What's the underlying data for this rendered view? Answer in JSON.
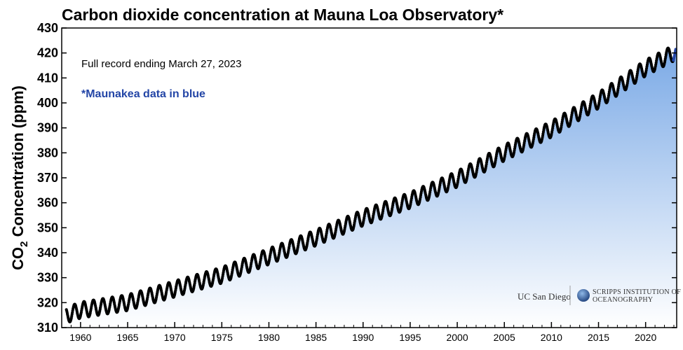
{
  "chart_data": {
    "type": "scatter",
    "title": "Carbon dioxide concentration at Mauna Loa Observatory*",
    "ylabel_main": "CO",
    "ylabel_sub": "2",
    "ylabel_rest": " Concentration (ppm)",
    "xlabel": "",
    "annotation": "Full record ending March 27, 2023",
    "annotation_blue": "*Maunakea data in blue",
    "xlim": [
      1958,
      2023.3
    ],
    "ylim": [
      310,
      430
    ],
    "x_ticks": [
      "1960",
      "1965",
      "1970",
      "1975",
      "1980",
      "1985",
      "1990",
      "1995",
      "2000",
      "2005",
      "2010",
      "2015",
      "2020"
    ],
    "y_ticks": [
      "310",
      "320",
      "330",
      "340",
      "350",
      "360",
      "370",
      "380",
      "390",
      "400",
      "410",
      "420",
      "430"
    ],
    "grid": false,
    "series": [
      {
        "color": "#000000",
        "marker": "circle",
        "x": [
          1958.5,
          1960,
          1965,
          1970,
          1975,
          1980,
          1985,
          1990,
          1995,
          2000,
          2005,
          2010,
          2015,
          2020,
          2023
        ],
        "y": [
          315,
          317,
          320,
          325.5,
          331,
          338.5,
          346,
          354,
          361,
          369.5,
          380,
          389.5,
          401,
          414,
          420
        ]
      },
      {
        "color": "#2345a6",
        "marker": "circle",
        "x": [
          2022.95,
          2023.2
        ],
        "y": [
          418,
          421
        ]
      }
    ],
    "seasonal_amplitude_ppm": 3.2
  },
  "logos": {
    "ucsd": "UC San Diego",
    "scripps_line1": "SCRIPPS INSTITUTION OF",
    "scripps_line2": "OCEANOGRAPHY"
  },
  "colors": {
    "fill_top": "#7aa9e6",
    "fill_bottom": "#ffffff",
    "points": "#000000",
    "maunakea": "#2345a6"
  }
}
